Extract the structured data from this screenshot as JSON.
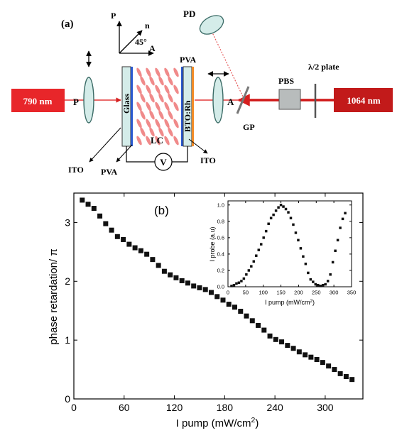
{
  "panel_a": {
    "label": "(a)",
    "source_790": "790 nm",
    "source_1064": "1064 nm",
    "polarizer": "P",
    "analyzer": "A",
    "glass": "Glass",
    "lc": "LC",
    "bto": "BTO:Rh",
    "pva_top": "PVA",
    "pva_bottom": "PVA",
    "ito_left": "ITO",
    "ito_right": "ITO",
    "voltage": "V",
    "pd": "PD",
    "gp": "GP",
    "pbs": "PBS",
    "half_wave": "λ/2 plate",
    "axis_p": "P",
    "axis_n": "n",
    "axis_a": "A",
    "angle": "45°"
  },
  "chart_data": [
    {
      "type": "scatter",
      "panel": "(b)",
      "xlabel": "I pump (mW/cm²)",
      "ylabel": "phase retardation/ π",
      "xlim": [
        0,
        345
      ],
      "ylim": [
        0,
        3.5
      ],
      "xticks": [
        "0",
        "60",
        "120",
        "180",
        "240",
        "300"
      ],
      "yticks": [
        "0",
        "1",
        "2",
        "3"
      ],
      "grid": false,
      "marker": "square",
      "x": [
        10,
        17,
        24,
        31,
        38,
        45,
        52,
        59,
        66,
        73,
        80,
        87,
        94,
        101,
        108,
        115,
        122,
        129,
        136,
        143,
        150,
        157,
        164,
        171,
        178,
        185,
        192,
        199,
        206,
        213,
        220,
        227,
        234,
        241,
        248,
        255,
        262,
        269,
        276,
        283,
        290,
        297,
        304,
        311,
        318,
        325,
        332
      ],
      "y": [
        3.38,
        3.31,
        3.24,
        3.11,
        2.98,
        2.87,
        2.76,
        2.71,
        2.63,
        2.57,
        2.52,
        2.46,
        2.37,
        2.27,
        2.17,
        2.11,
        2.06,
        2.01,
        1.97,
        1.92,
        1.89,
        1.86,
        1.81,
        1.74,
        1.68,
        1.61,
        1.56,
        1.49,
        1.41,
        1.33,
        1.25,
        1.17,
        1.07,
        1.01,
        0.97,
        0.91,
        0.86,
        0.8,
        0.75,
        0.71,
        0.67,
        0.62,
        0.56,
        0.5,
        0.43,
        0.38,
        0.33
      ]
    },
    {
      "type": "scatter",
      "panel": "inset",
      "xlabel": "I pump (mW/cm²)",
      "ylabel": "I probe (a.u)",
      "xlim": [
        0,
        350
      ],
      "ylim": [
        0,
        1.05
      ],
      "xticks": [
        "0",
        "50",
        "100",
        "150",
        "200",
        "250",
        "300",
        "350"
      ],
      "yticks": [
        "0.0",
        "0.2",
        "0.4",
        "0.6",
        "0.8",
        "1.0"
      ],
      "grid": false,
      "marker": "square",
      "x": [
        10,
        17,
        24,
        31,
        38,
        45,
        52,
        59,
        66,
        73,
        80,
        87,
        94,
        101,
        108,
        115,
        122,
        129,
        136,
        143,
        150,
        157,
        164,
        171,
        178,
        185,
        192,
        199,
        206,
        213,
        220,
        227,
        234,
        241,
        248,
        255,
        262,
        269,
        276,
        283,
        290,
        297,
        304,
        311,
        318,
        325,
        332
      ],
      "y": [
        0.01,
        0.02,
        0.04,
        0.05,
        0.07,
        0.1,
        0.15,
        0.2,
        0.25,
        0.31,
        0.38,
        0.45,
        0.52,
        0.6,
        0.68,
        0.77,
        0.84,
        0.88,
        0.93,
        0.97,
        1.0,
        0.98,
        0.95,
        0.91,
        0.84,
        0.76,
        0.66,
        0.57,
        0.47,
        0.37,
        0.28,
        0.17,
        0.09,
        0.06,
        0.03,
        0.02,
        0.01,
        0.02,
        0.03,
        0.07,
        0.15,
        0.3,
        0.44,
        0.57,
        0.72,
        0.83,
        0.9
      ]
    }
  ]
}
